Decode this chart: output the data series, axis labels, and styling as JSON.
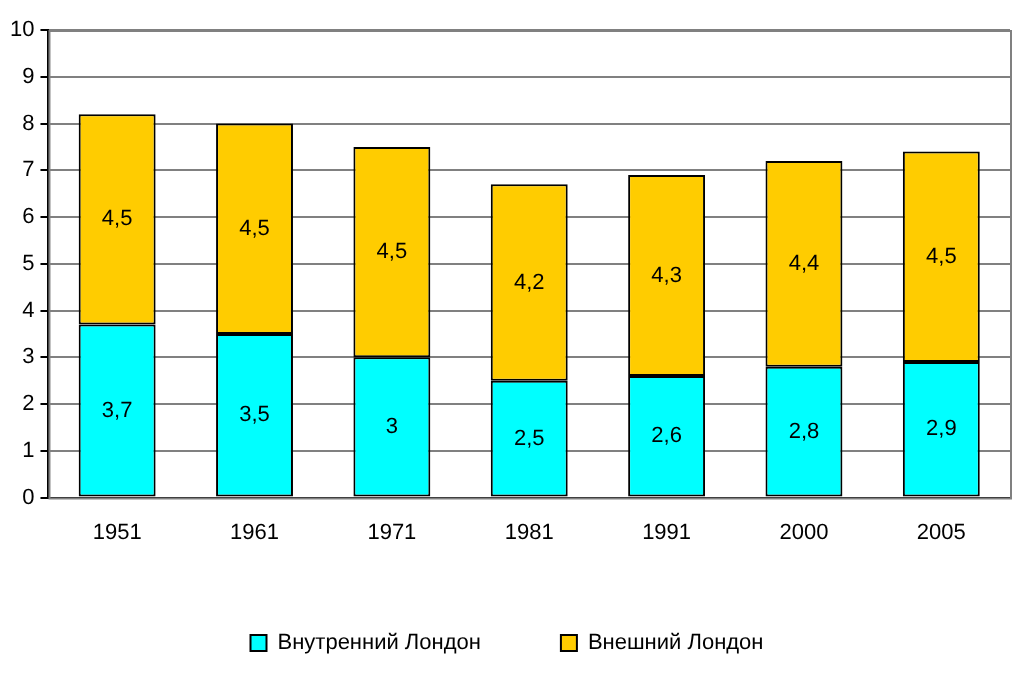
{
  "chart_data": {
    "type": "bar",
    "stacked": true,
    "categories": [
      "1951",
      "1961",
      "1971",
      "1981",
      "1991",
      "2000",
      "2005"
    ],
    "series": [
      {
        "name": "Внутренний Лондон",
        "color": "#00ffff",
        "values": [
          3.7,
          3.5,
          3,
          2.5,
          2.6,
          2.8,
          2.9
        ],
        "value_labels": [
          "3,7",
          "3,5",
          "3",
          "2,5",
          "2,6",
          "2,8",
          "2,9"
        ]
      },
      {
        "name": "Внешний Лондон",
        "color": "#ffcc00",
        "values": [
          4.5,
          4.5,
          4.5,
          4.2,
          4.3,
          4.4,
          4.5
        ],
        "value_labels": [
          "4,5",
          "4,5",
          "4,5",
          "4,2",
          "4,3",
          "4,4",
          "4,5"
        ]
      }
    ],
    "ylim": [
      0,
      10
    ],
    "yticks": [
      0,
      1,
      2,
      3,
      4,
      5,
      6,
      7,
      8,
      9,
      10
    ],
    "grid": "y",
    "legend": "bottom"
  }
}
